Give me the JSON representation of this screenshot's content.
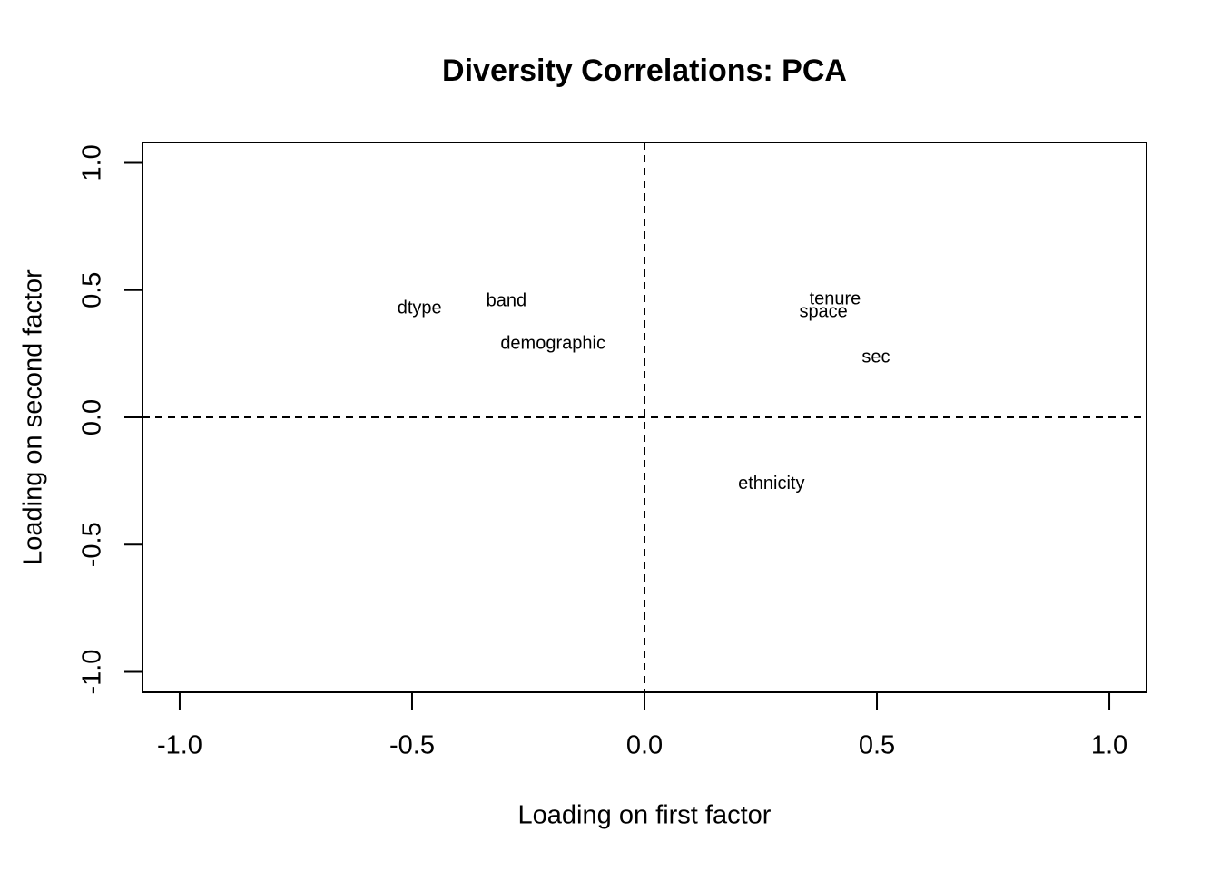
{
  "chart_data": {
    "type": "scatter",
    "title": "Diversity Correlations: PCA",
    "xlabel": "Loading on first factor",
    "ylabel": "Loading on second factor",
    "point_labels": [
      "dtype",
      "band",
      "demographic",
      "tenure",
      "space",
      "sec",
      "ethnicity"
    ],
    "x": [
      -0.484,
      -0.297,
      -0.197,
      0.41,
      0.385,
      0.498,
      0.273
    ],
    "values": [
      0.427,
      0.456,
      0.288,
      0.463,
      0.413,
      0.235,
      -0.263
    ],
    "color": "#000000",
    "xlim": [
      -1.08,
      1.08
    ],
    "ylim": [
      -1.08,
      1.08
    ],
    "xticks": [
      {
        "value": -1,
        "label": "-1.0"
      },
      -0.5,
      {
        "value": 0,
        "label": "0.0"
      },
      0.5,
      {
        "value": 1,
        "label": "1.0"
      }
    ],
    "yticks": [
      {
        "value": -1,
        "label": "-1.0"
      },
      -0.5,
      {
        "value": 0,
        "label": "0.0"
      },
      0.5,
      {
        "value": 1,
        "label": "1.0"
      }
    ],
    "hline": 0,
    "vline": 0,
    "grid": false
  }
}
